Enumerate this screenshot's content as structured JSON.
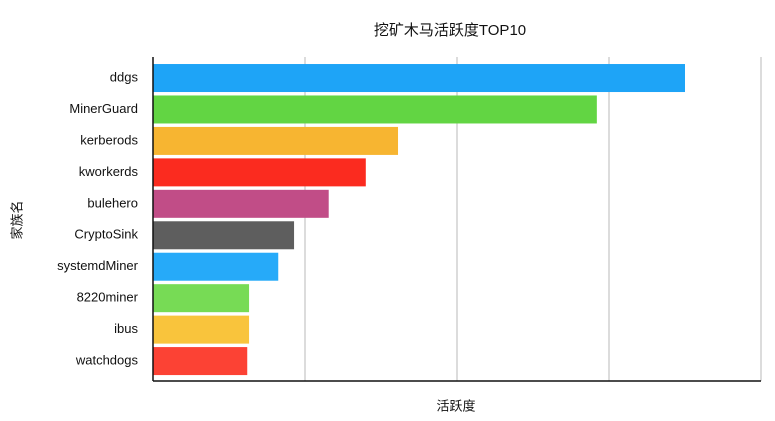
{
  "chart_data": {
    "type": "barh",
    "title": "挖矿木马活跃度TOP10",
    "x_label": "活跃度",
    "y_label": "家族名",
    "categories": [
      "ddgs",
      "MinerGuard",
      "kerberods",
      "kworkerds",
      "bulehero",
      "CryptoSink",
      "systemdMiner",
      "8220miner",
      "ibus",
      "watchdogs"
    ],
    "values": [
      87.5,
      73.0,
      40.3,
      35.0,
      28.9,
      23.2,
      20.6,
      15.8,
      15.8,
      15.5
    ],
    "colors": [
      "#1ea4f7",
      "#62d543",
      "#f7b531",
      "#fb2b1f",
      "#c14d87",
      "#5e5e5e",
      "#26aaf9",
      "#77db55",
      "#f9c43c",
      "#fc4234"
    ],
    "xlim": [
      0,
      100
    ],
    "xticks": [
      25,
      50,
      75,
      100
    ],
    "tick_labels": false,
    "grid": true
  }
}
